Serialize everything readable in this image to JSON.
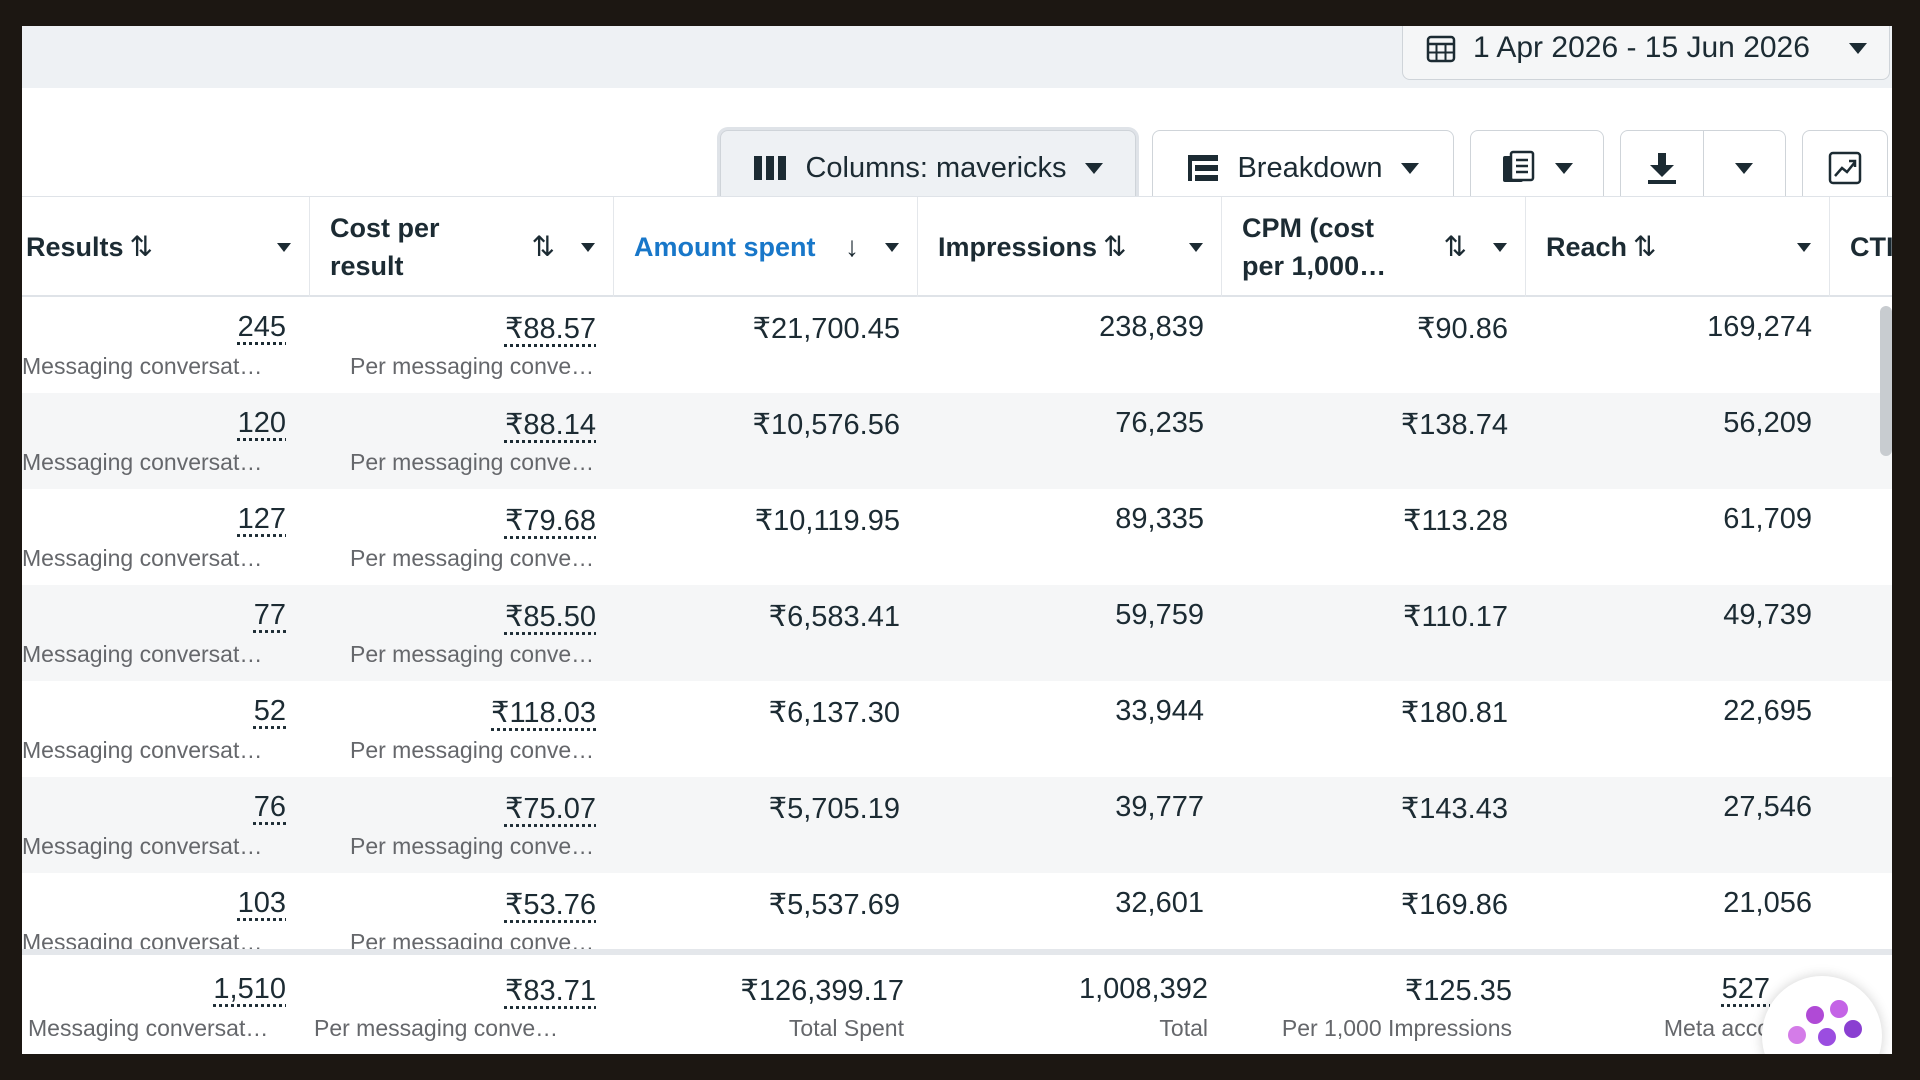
{
  "date_range": {
    "label": "1 Apr 2026 - 15 Jun 2026",
    "icon": "calendar-icon"
  },
  "toolbar": {
    "columns_label": "Columns: mavericks",
    "breakdown_label": "Breakdown",
    "reports_icon": "reports-icon",
    "export_icon": "download-icon",
    "chart_icon": "trend-chart-icon"
  },
  "columns": [
    {
      "key": "results",
      "label": "Results",
      "sort": "⇅"
    },
    {
      "key": "cost_per_result",
      "label": "Cost per result",
      "sort": "⇅"
    },
    {
      "key": "amount_spent",
      "label": "Amount spent",
      "sort": "↓"
    },
    {
      "key": "impressions",
      "label": "Impressions",
      "sort": "⇅"
    },
    {
      "key": "cpm",
      "label": "CPM (cost per 1,000…",
      "sort": "⇅"
    },
    {
      "key": "reach",
      "label": "Reach",
      "sort": "⇅"
    },
    {
      "key": "ctr",
      "label": "CTI"
    }
  ],
  "rows": [
    {
      "results": "245",
      "results_sub": "Messaging conversat…",
      "cost_per_result": "₹88.57",
      "cost_sub": "Per messaging conve…",
      "amount_spent": "₹21,700.45",
      "impressions": "238,839",
      "cpm": "₹90.86",
      "reach": "169,274"
    },
    {
      "results": "120",
      "results_sub": "Messaging conversat…",
      "cost_per_result": "₹88.14",
      "cost_sub": "Per messaging conve…",
      "amount_spent": "₹10,576.56",
      "impressions": "76,235",
      "cpm": "₹138.74",
      "reach": "56,209"
    },
    {
      "results": "127",
      "results_sub": "Messaging conversat…",
      "cost_per_result": "₹79.68",
      "cost_sub": "Per messaging conve…",
      "amount_spent": "₹10,119.95",
      "impressions": "89,335",
      "cpm": "₹113.28",
      "reach": "61,709"
    },
    {
      "results": "77",
      "results_sub": "Messaging conversat…",
      "cost_per_result": "₹85.50",
      "cost_sub": "Per messaging conve…",
      "amount_spent": "₹6,583.41",
      "impressions": "59,759",
      "cpm": "₹110.17",
      "reach": "49,739"
    },
    {
      "results": "52",
      "results_sub": "Messaging conversat…",
      "cost_per_result": "₹118.03",
      "cost_sub": "Per messaging conve…",
      "amount_spent": "₹6,137.30",
      "impressions": "33,944",
      "cpm": "₹180.81",
      "reach": "22,695"
    },
    {
      "results": "76",
      "results_sub": "Messaging conversat…",
      "cost_per_result": "₹75.07",
      "cost_sub": "Per messaging conve…",
      "amount_spent": "₹5,705.19",
      "impressions": "39,777",
      "cpm": "₹143.43",
      "reach": "27,546"
    },
    {
      "results": "103",
      "results_sub": "Messaging conversat…",
      "cost_per_result": "₹53.76",
      "cost_sub": "Per messaging conve…",
      "amount_spent": "₹5,537.69",
      "impressions": "32,601",
      "cpm": "₹169.86",
      "reach": "21,056"
    }
  ],
  "totals": {
    "results": "1,510",
    "results_sub": "Messaging conversat…",
    "cost_per_result": "₹83.71",
    "cost_sub": "Per messaging conve…",
    "amount_spent": "₹126,399.17",
    "amount_sub": "Total Spent",
    "impressions": "1,008,392",
    "impressions_sub": "Total",
    "cpm": "₹125.35",
    "cpm_sub": "Per 1,000 Impressions",
    "reach": "527",
    "reach_sub": "Meta acco"
  },
  "colors": {
    "accent": "#1877c9",
    "text": "#1c2b33",
    "muted": "#65676b",
    "alt_row": "#f5f6f7"
  }
}
